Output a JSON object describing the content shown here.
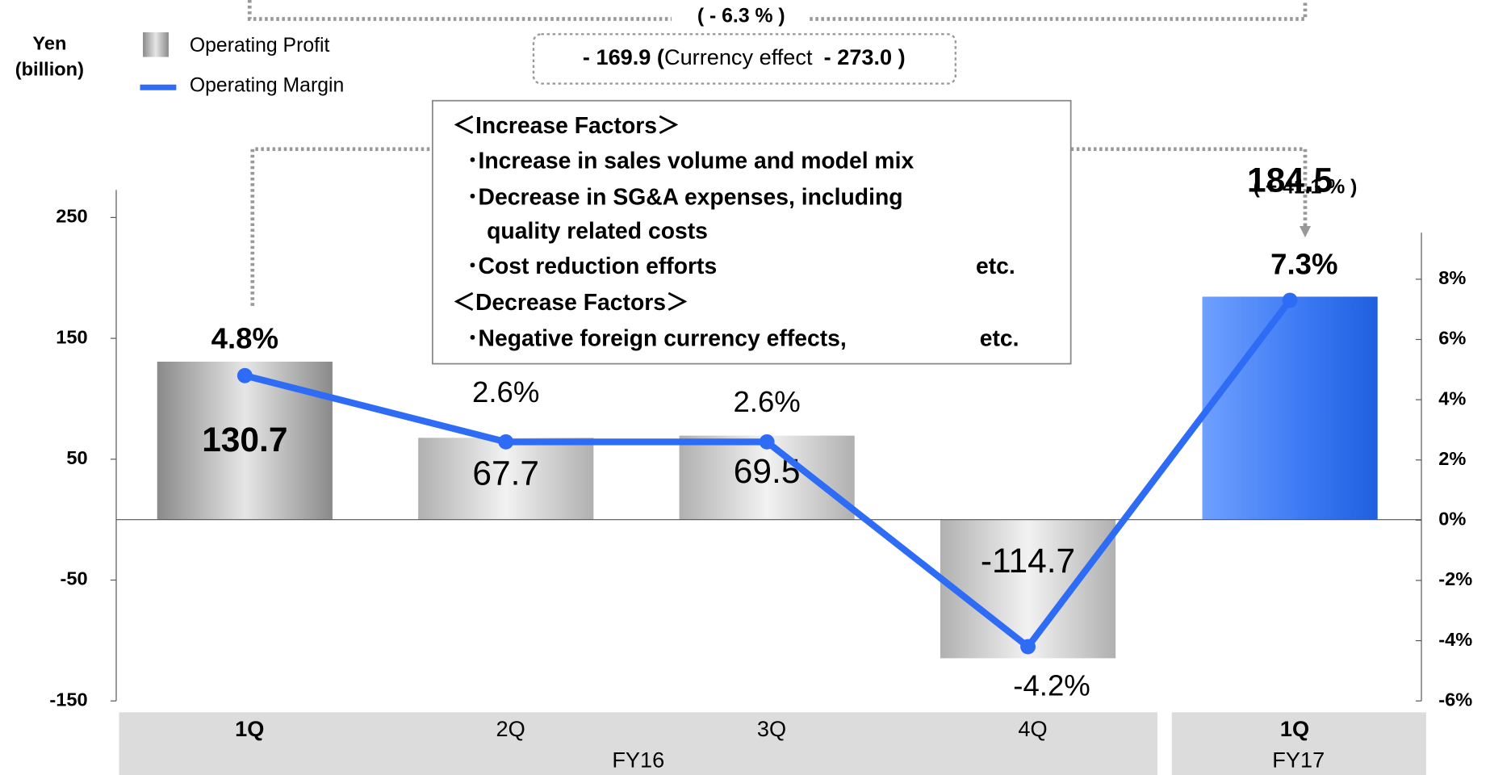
{
  "chart_data": {
    "type": "bar",
    "y_label": [
      "Yen",
      "(billion)"
    ],
    "groups": [
      {
        "label": "FY16",
        "categories": [
          "1Q",
          "2Q",
          "3Q",
          "4Q"
        ]
      },
      {
        "label": "FY17",
        "categories": [
          "1Q"
        ]
      }
    ],
    "highlight": [
      true,
      false,
      false,
      false,
      true
    ],
    "series": [
      {
        "name": "Operating Profit",
        "type": "bar",
        "colors": [
          "#9a9a9a",
          "#b4b4b4",
          "#b4b4b4",
          "#b4b4b4",
          "#3a78f2"
        ],
        "values": [
          130.7,
          67.7,
          69.5,
          -114.7,
          184.5
        ]
      },
      {
        "name": "Operating Margin",
        "type": "line",
        "axis": "y2",
        "color": "#2f6cf5",
        "values": [
          4.8,
          2.6,
          2.6,
          -4.2,
          7.3
        ],
        "value_labels": [
          "4.8%",
          "2.6%",
          "2.6%",
          "-4.2%",
          "7.3%"
        ]
      }
    ],
    "ylim": [
      -150,
      250
    ],
    "yticks": [
      250,
      150,
      50,
      -50,
      -150
    ],
    "y2lim": [
      -6,
      8
    ],
    "y2ticks": [
      {
        "value": 8,
        "label": "8%"
      },
      {
        "value": 6,
        "label": "6%"
      },
      {
        "value": 4,
        "label": "4%"
      },
      {
        "value": 2,
        "label": "2%"
      },
      {
        "value": 0,
        "label": "0%"
      },
      {
        "value": -2,
        "label": "-2%"
      },
      {
        "value": -4,
        "label": "-4%"
      },
      {
        "value": -6,
        "label": "-6%"
      }
    ],
    "annotations": {
      "margin_change": "( - 6.3 % )",
      "profit_change": [
        "- 169.9 (",
        "Currency effect",
        "- 273.0 )"
      ],
      "margin_change_fy17": "( + 41.1 % )",
      "factors": [
        {
          "text": "＜Increase Factors＞"
        },
        {
          "text": "･Increase in sales volume and model mix"
        },
        {
          "text": "･Decrease in SG&A expenses, including"
        },
        {
          "text": "quality related costs"
        },
        {
          "text": "･Cost reduction efforts",
          "note": "etc."
        },
        {
          "text": "＜Decrease Factors＞"
        },
        {
          "text": "･Negative foreign currency effects,",
          "note": "etc."
        }
      ]
    }
  }
}
